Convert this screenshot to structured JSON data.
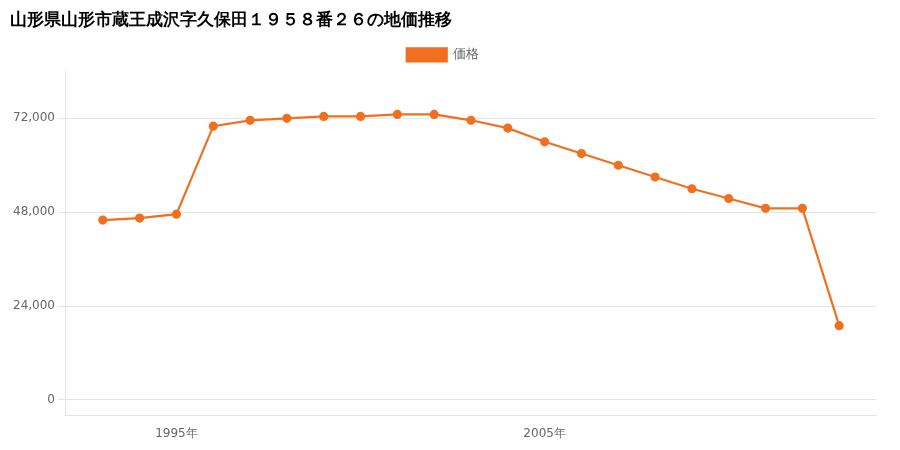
{
  "chart_data": {
    "type": "line",
    "title": "山形県山形市蔵王成沢字久保田１９５８番２６の地価推移",
    "x": [
      1993,
      1994,
      1995,
      1996,
      1997,
      1998,
      1999,
      2000,
      2001,
      2002,
      2003,
      2004,
      2005,
      2006,
      2007,
      2008,
      2009,
      2010,
      2011,
      2012,
      2013
    ],
    "series": [
      {
        "name": "価格",
        "color": "#f07020",
        "marker": "circle",
        "values": [
          46000,
          46500,
          47500,
          70000,
          71500,
          72000,
          72500,
          72500,
          73000,
          73000,
          71500,
          69500,
          66000,
          63000,
          60000,
          57000,
          54000,
          51500,
          49000,
          49000,
          19000
        ]
      }
    ],
    "xlim": [
      1992,
      2014
    ],
    "xticks": [
      {
        "value": 1995,
        "label": "1995年"
      },
      {
        "value": 2005,
        "label": "2005年"
      }
    ],
    "ylim": [
      -4000,
      84000
    ],
    "yticks": [
      0,
      {
        "value": 24000,
        "label": "24,000"
      },
      {
        "value": 48000,
        "label": "48,000"
      },
      {
        "value": 72000,
        "label": "72,000"
      }
    ],
    "grid": "y",
    "legend": "top"
  }
}
